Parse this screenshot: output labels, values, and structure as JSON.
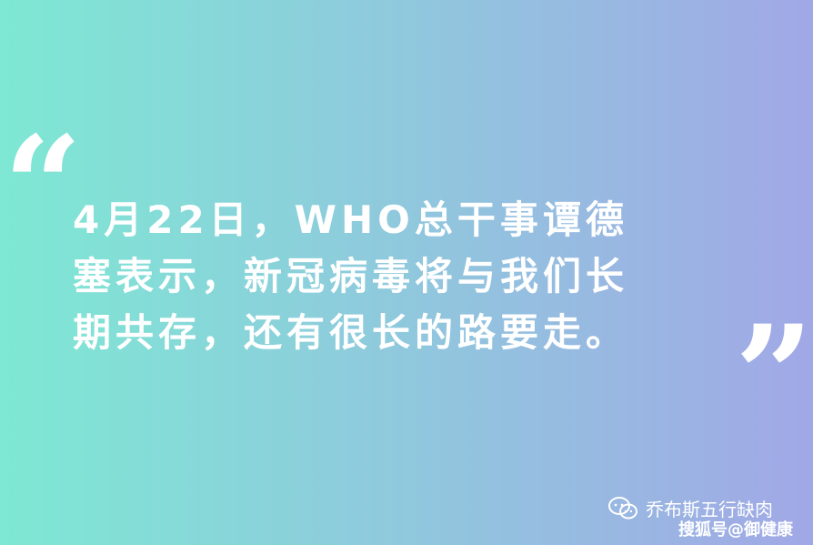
{
  "background": {
    "gradient_start": "#7ee8d4",
    "gradient_end": "#a1a8e6"
  },
  "quote": {
    "open_mark": "“",
    "close_mark": "”",
    "text": "4月22日，WHO总干事谭德\n塞表示，新冠病毒将与我们长\n期共存，还有很长的路要走。"
  },
  "footer": {
    "icon": "wechat-icon",
    "source": "乔布斯五行缺肉",
    "credit": "搜狐号@御健康"
  }
}
